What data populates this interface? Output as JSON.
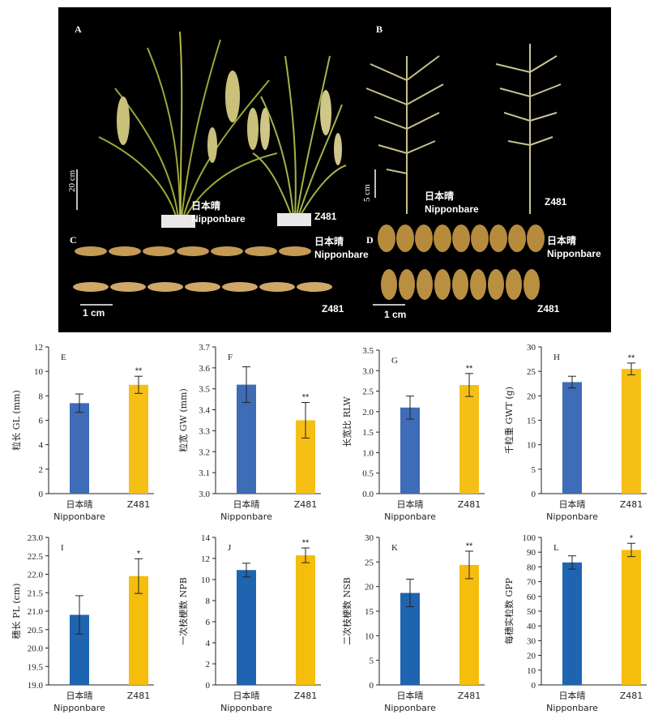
{
  "photo": {
    "panel_a": {
      "label": "A",
      "scale": "20 cm",
      "left_name_cn": "日本晴",
      "left_name_en": "Nipponbare",
      "right_name": "Z481"
    },
    "panel_b": {
      "label": "B",
      "scale": "5 cm",
      "left_name_cn": "日本晴",
      "left_name_en": "Nipponbare",
      "right_name": "Z481"
    },
    "panel_c": {
      "label": "C",
      "scale": "1 cm",
      "top_name_cn": "日本晴",
      "top_name_en": "Nipponbare",
      "bottom_name": "Z481"
    },
    "panel_d": {
      "label": "D",
      "scale": "1 cm",
      "top_name_cn": "日本晴",
      "top_name_en": "Nipponbare",
      "bottom_name": "Z481"
    }
  },
  "colors": {
    "nipponbare": "#3e6cb6",
    "z481": "#f6bf16",
    "nipponbare_row2": "#1f64b0",
    "z481_row2": "#f5bd0c"
  },
  "chart_data": [
    {
      "type": "bar",
      "panel": "E",
      "ylabel": "粒长 GL (mm)",
      "ylim": [
        0,
        12
      ],
      "yticks": [
        0,
        2,
        4,
        6,
        8,
        10,
        12
      ],
      "categories": [
        "日本晴\nNipponbare",
        "Z481"
      ],
      "values": [
        7.4,
        8.9
      ],
      "errors": [
        0.75,
        0.7
      ],
      "sig": [
        "",
        "**"
      ]
    },
    {
      "type": "bar",
      "panel": "F",
      "ylabel": "粒宽 GW (mm)",
      "ylim": [
        3.0,
        3.7
      ],
      "yticks": [
        3.0,
        3.1,
        3.2,
        3.3,
        3.4,
        3.5,
        3.6,
        3.7
      ],
      "categories": [
        "日本晴\nNipponbare",
        "Z481"
      ],
      "values": [
        3.52,
        3.35
      ],
      "errors": [
        0.085,
        0.085
      ],
      "sig": [
        "",
        "**"
      ]
    },
    {
      "type": "bar",
      "panel": "G",
      "ylabel": "长宽比 RLW",
      "ylim": [
        0,
        3.5
      ],
      "yticks": [
        0.0,
        0.5,
        1.0,
        1.5,
        2.0,
        2.5,
        3.0,
        3.5
      ],
      "categories": [
        "日本晴\nNipponbare",
        "Z481"
      ],
      "values": [
        2.1,
        2.65
      ],
      "errors": [
        0.28,
        0.28
      ],
      "sig": [
        "",
        "**"
      ]
    },
    {
      "type": "bar",
      "panel": "H",
      "ylabel": "千粒重 GWT (g)",
      "ylim": [
        0,
        30
      ],
      "yticks": [
        0,
        5,
        10,
        15,
        20,
        25,
        30
      ],
      "categories": [
        "日本晴\nNipponbare",
        "Z481"
      ],
      "values": [
        22.8,
        25.5
      ],
      "errors": [
        1.2,
        1.2
      ],
      "sig": [
        "",
        "**"
      ]
    },
    {
      "type": "bar",
      "panel": "I",
      "ylabel": "穗长 PL (cm)",
      "ylim": [
        19.0,
        23.0
      ],
      "yticks": [
        19.0,
        19.5,
        20.0,
        20.5,
        21.0,
        21.5,
        22.0,
        22.5,
        23.0
      ],
      "categories": [
        "日本晴\nNipponbare",
        "Z481"
      ],
      "values": [
        20.9,
        21.95
      ],
      "errors": [
        0.52,
        0.47
      ],
      "sig": [
        "",
        "*"
      ]
    },
    {
      "type": "bar",
      "panel": "J",
      "ylabel": "一次枝梗数 NPB",
      "ylim": [
        0,
        14
      ],
      "yticks": [
        0,
        2,
        4,
        6,
        8,
        10,
        12,
        14
      ],
      "categories": [
        "日本晴\nNipponbare",
        "Z481"
      ],
      "values": [
        10.9,
        12.3
      ],
      "errors": [
        0.65,
        0.7
      ],
      "sig": [
        "",
        "**"
      ]
    },
    {
      "type": "bar",
      "panel": "K",
      "ylabel": "二次枝梗数 NSB",
      "ylim": [
        0,
        30
      ],
      "yticks": [
        0,
        5,
        10,
        15,
        20,
        25,
        30
      ],
      "categories": [
        "日本晴\nNipponbare",
        "Z481"
      ],
      "values": [
        18.7,
        24.4
      ],
      "errors": [
        2.8,
        2.8
      ],
      "sig": [
        "",
        "**"
      ]
    },
    {
      "type": "bar",
      "panel": "L",
      "ylabel": "每穗实粒数 GPP",
      "ylim": [
        0,
        100
      ],
      "yticks": [
        0,
        10,
        20,
        30,
        40,
        50,
        60,
        70,
        80,
        90,
        100
      ],
      "categories": [
        "日本晴\nNipponbare",
        "Z481"
      ],
      "values": [
        83,
        91.5
      ],
      "errors": [
        4.5,
        4.5
      ],
      "sig": [
        "",
        "*"
      ]
    }
  ]
}
